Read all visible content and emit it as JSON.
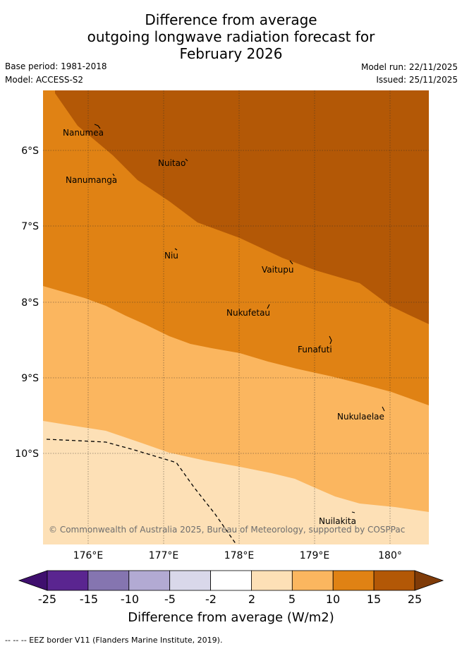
{
  "title": {
    "line1": "Difference from average",
    "line2": "outgoing longwave radiation forecast for",
    "line3": "February 2026"
  },
  "meta": {
    "base_period": "Base period: 1981-2018",
    "model": "Model: ACCESS-S2",
    "model_run": "Model run: 22/11/2025",
    "issued": "Issued: 25/11/2025"
  },
  "map": {
    "lat_labels": [
      "6°S",
      "7°S",
      "8°S",
      "9°S",
      "10°S"
    ],
    "lon_labels": [
      "176°E",
      "177°E",
      "178°E",
      "179°E",
      "180°"
    ],
    "places": [
      {
        "name": "Nanumea"
      },
      {
        "name": "Nuitao"
      },
      {
        "name": "Nanumanga"
      },
      {
        "name": "Niu"
      },
      {
        "name": "Vaitupu"
      },
      {
        "name": "Nukufetau"
      },
      {
        "name": "Funafuti"
      },
      {
        "name": "Nukulaelae"
      },
      {
        "name": "Nuilakita"
      }
    ],
    "credit": "© Commonwealth of Australia 2025, Bureau of Meteorology, supported by COSPPac"
  },
  "colorbar": {
    "labels": [
      "-25",
      "-15",
      "-10",
      "-5",
      "-2",
      "2",
      "5",
      "10",
      "15",
      "25"
    ],
    "colors": [
      "#3f0f6e",
      "#5a2590",
      "#8575b0",
      "#b2aad3",
      "#d9d8ea",
      "#ffffff",
      "#fde0b6",
      "#fbb65f",
      "#e08214",
      "#b35806",
      "#7f3b08"
    ],
    "title": "Difference from average (W/m2)"
  },
  "footnote": "-- -- -- EEZ border V11 (Flanders Marine Institute, 2019).",
  "colors": {
    "level_5_10": "#fbb65f",
    "level_2_5": "#fde0b6",
    "level_10_15": "#e08214",
    "level_15_25": "#b35806"
  }
}
